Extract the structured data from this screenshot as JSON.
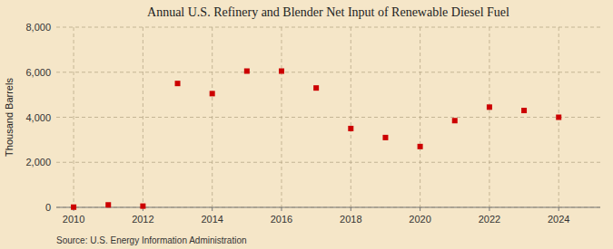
{
  "chart_data": {
    "type": "scatter",
    "title": "Annual U.S. Refinery and Blender Net Input of Renewable Diesel Fuel",
    "ylabel": "Thousand Barrels",
    "source": "Source: U.S. Energy Information Administration",
    "x": [
      2010,
      2011,
      2012,
      2013,
      2014,
      2015,
      2016,
      2017,
      2018,
      2019,
      2020,
      2021,
      2022,
      2023,
      2024
    ],
    "values": [
      10,
      110,
      55,
      5500,
      5050,
      6050,
      6050,
      5300,
      3500,
      3100,
      2700,
      3850,
      4450,
      4300,
      4000
    ],
    "color": "#cc0000",
    "marker": "square",
    "xlim": [
      2009.5,
      2025.2
    ],
    "xticks": [
      2010,
      2012,
      2014,
      2016,
      2018,
      2020,
      2022,
      2024
    ],
    "ylim": [
      0,
      8000
    ],
    "yticks": [
      0,
      {
        "value": 2000,
        "label": "2,000"
      },
      {
        "value": 4000,
        "label": "4,000"
      },
      {
        "value": 6000,
        "label": "6,000"
      },
      {
        "value": 8000,
        "label": "8,000"
      }
    ],
    "grid": true
  }
}
